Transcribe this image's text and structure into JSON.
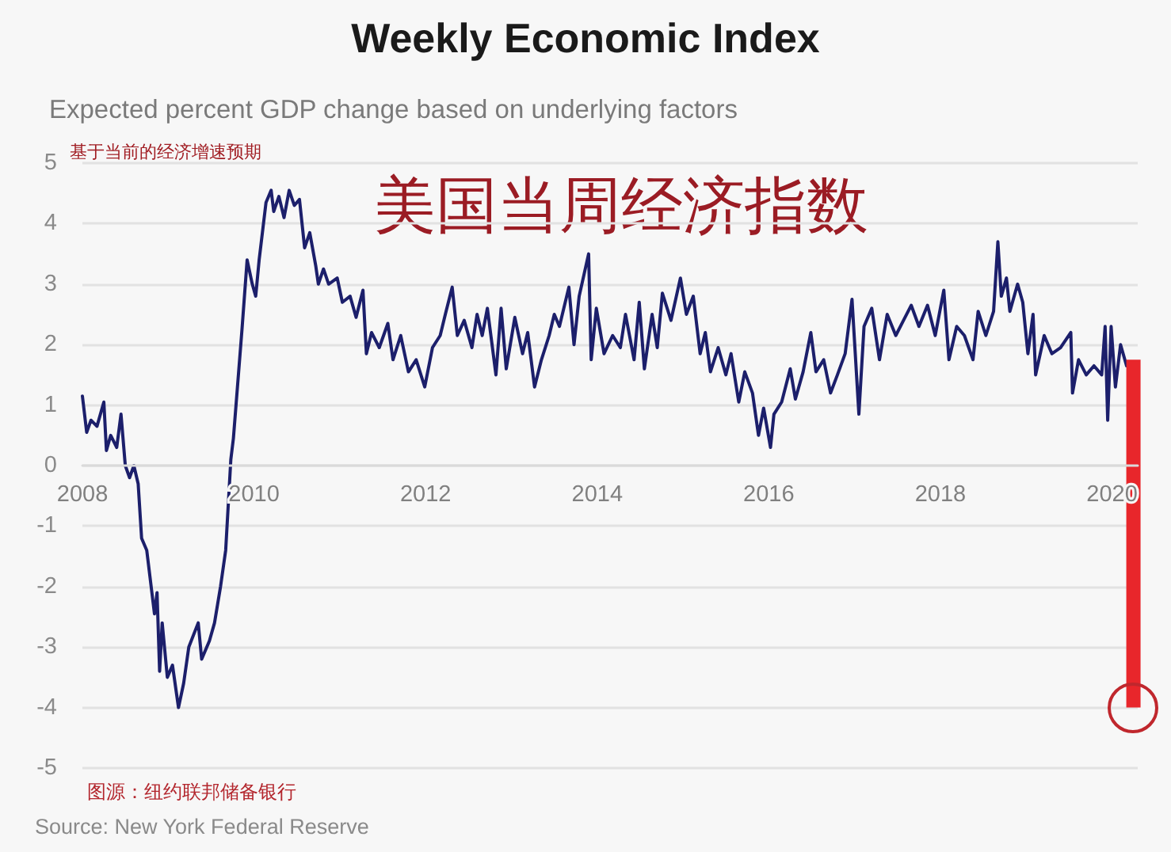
{
  "chart_data": {
    "type": "line",
    "title": "Weekly Economic Index",
    "subtitle": "Expected percent GDP change based on underlying factors",
    "ylabel": "基于当前的经济增速预期",
    "annotations": [
      "美国当周经济指数",
      "图源：纽约联邦储备银行",
      "Source: New York Federal Reserve"
    ],
    "x": [
      2008.0,
      2008.05,
      2008.1,
      2008.17,
      2008.25,
      2008.28,
      2008.33,
      2008.4,
      2008.45,
      2008.5,
      2008.55,
      2008.6,
      2008.65,
      2008.69,
      2008.75,
      2008.84,
      2008.87,
      2008.9,
      2008.93,
      2008.99,
      2009.05,
      2009.12,
      2009.18,
      2009.24,
      2009.35,
      2009.39,
      2009.48,
      2009.54,
      2009.61,
      2009.67,
      2009.73,
      2009.76,
      2009.86,
      2009.92,
      2009.98,
      2010.02,
      2010.06,
      2010.14,
      2010.2,
      2010.23,
      2010.29,
      2010.35,
      2010.41,
      2010.47,
      2010.53,
      2010.59,
      2010.65,
      2010.72,
      2010.75,
      2010.81,
      2010.87,
      2010.97,
      2011.03,
      2011.12,
      2011.19,
      2011.27,
      2011.31,
      2011.37,
      2011.46,
      2011.56,
      2011.62,
      2011.71,
      2011.8,
      2011.89,
      2011.99,
      2012.08,
      2012.17,
      2012.23,
      2012.31,
      2012.37,
      2012.45,
      2012.54,
      2012.6,
      2012.66,
      2012.72,
      2012.82,
      2012.88,
      2012.94,
      2013.04,
      2013.13,
      2013.19,
      2013.27,
      2013.35,
      2013.44,
      2013.5,
      2013.56,
      2013.67,
      2013.73,
      2013.79,
      2013.9,
      2013.93,
      2013.99,
      2014.08,
      2014.18,
      2014.27,
      2014.33,
      2014.43,
      2014.49,
      2014.55,
      2014.64,
      2014.7,
      2014.76,
      2014.86,
      2014.97,
      2015.04,
      2015.12,
      2015.2,
      2015.26,
      2015.32,
      2015.41,
      2015.5,
      2015.56,
      2015.65,
      2015.72,
      2015.81,
      2015.88,
      2015.94,
      2016.02,
      2016.06,
      2016.15,
      2016.25,
      2016.31,
      2016.4,
      2016.49,
      2016.55,
      2016.64,
      2016.72,
      2016.8,
      2016.89,
      2016.97,
      2017.05,
      2017.11,
      2017.2,
      2017.29,
      2017.38,
      2017.48,
      2017.57,
      2017.66,
      2017.75,
      2017.85,
      2017.94,
      2018.04,
      2018.1,
      2018.19,
      2018.28,
      2018.38,
      2018.44,
      2018.53,
      2018.62,
      2018.67,
      2018.71,
      2018.77,
      2018.81,
      2018.9,
      2018.96,
      2019.02,
      2019.08,
      2019.11,
      2019.21,
      2019.3,
      2019.4,
      2019.52,
      2019.54,
      2019.61,
      2019.7,
      2019.79,
      2019.88,
      2019.92,
      2019.95,
      2019.99,
      2020.04,
      2020.1,
      2020.17
    ],
    "series": [
      {
        "color": "#1c1f6b",
        "values": [
          1.15,
          0.55,
          0.75,
          0.65,
          1.05,
          0.25,
          0.5,
          0.3,
          0.85,
          0.0,
          -0.2,
          0.0,
          -0.3,
          -1.2,
          -1.4,
          -2.45,
          -2.1,
          -3.4,
          -2.6,
          -3.5,
          -3.3,
          -4.0,
          -3.6,
          -3.0,
          -2.6,
          -3.2,
          -2.9,
          -2.6,
          -2.0,
          -1.4,
          0.1,
          0.45,
          2.25,
          3.4,
          3.0,
          2.8,
          3.4,
          4.35,
          4.55,
          4.2,
          4.45,
          4.1,
          4.55,
          4.3,
          4.4,
          3.6,
          3.85,
          3.3,
          3.0,
          3.25,
          3.0,
          3.1,
          2.7,
          2.8,
          2.45,
          2.9,
          1.85,
          2.2,
          1.95,
          2.35,
          1.75,
          2.15,
          1.55,
          1.75,
          1.3,
          1.95,
          2.15,
          2.5,
          2.95,
          2.15,
          2.4,
          1.95,
          2.5,
          2.15,
          2.6,
          1.5,
          2.6,
          1.6,
          2.45,
          1.85,
          2.2,
          1.3,
          1.75,
          2.15,
          2.5,
          2.3,
          2.95,
          2.0,
          2.8,
          3.5,
          1.75,
          2.6,
          1.85,
          2.15,
          1.95,
          2.5,
          1.75,
          2.7,
          1.6,
          2.5,
          1.95,
          2.85,
          2.4,
          3.1,
          2.5,
          2.8,
          1.85,
          2.2,
          1.55,
          1.95,
          1.5,
          1.85,
          1.05,
          1.55,
          1.2,
          0.5,
          0.95,
          0.3,
          0.85,
          1.05,
          1.6,
          1.1,
          1.55,
          2.2,
          1.55,
          1.75,
          1.2,
          1.5,
          1.85,
          2.75,
          0.85,
          2.3,
          2.6,
          1.75,
          2.5,
          2.15,
          2.4,
          2.65,
          2.3,
          2.65,
          2.15,
          2.9,
          1.75,
          2.3,
          2.15,
          1.75,
          2.55,
          2.15,
          2.55,
          3.7,
          2.8,
          3.1,
          2.55,
          3.0,
          2.7,
          1.85,
          2.5,
          1.5,
          2.15,
          1.85,
          1.95,
          2.2,
          1.2,
          1.75,
          1.5,
          1.65,
          1.5,
          2.3,
          0.75,
          2.3,
          1.3,
          2.0,
          1.65
        ]
      },
      {
        "color": "#e8262b",
        "x": [
          2020.25,
          2020.25
        ],
        "values": [
          1.75,
          -4
        ]
      }
    ],
    "xlim": [
      2008,
      2020.3
    ],
    "xticks": [
      2008,
      2010,
      2012,
      2014,
      2016,
      2018,
      2020
    ],
    "ylim": [
      -5,
      5
    ],
    "yticks": [
      -5,
      -4,
      -3,
      -2,
      -1,
      0,
      1,
      2,
      3,
      4,
      5
    ],
    "grid": "y",
    "line_style": "solid"
  }
}
